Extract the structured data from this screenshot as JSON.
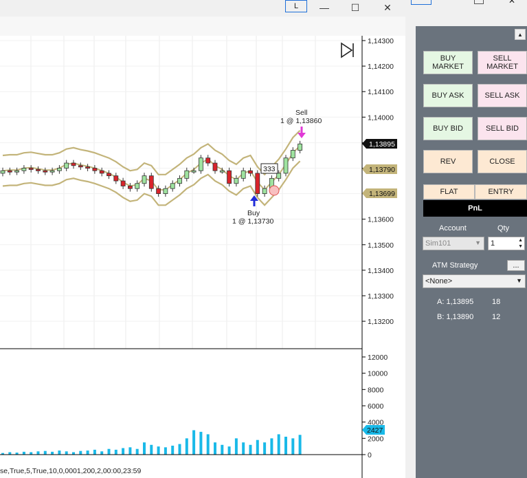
{
  "window": {
    "layout_button": "L",
    "minimize_icon": "minimize-icon",
    "maximize_icon": "maximize-icon",
    "close_icon": "close-icon"
  },
  "chart": {
    "price_axis": [
      "1,14300",
      "1,14200",
      "1,14100",
      "1,14000",
      "1,13900",
      "1,13800",
      "1,13700",
      "1,13600",
      "1,13500",
      "1,13400",
      "1,13300",
      "1,13200"
    ],
    "price_markers": {
      "last": "1,13895",
      "mid": "1,13790",
      "low": "1,13699"
    },
    "volume_axis": [
      "12000",
      "10000",
      "8000",
      "6000",
      "4000",
      "2000",
      "0"
    ],
    "volume_marker": "2427",
    "sell_annotation": {
      "title": "Sell",
      "detail": "1 @ 1,13860"
    },
    "buy_annotation": {
      "title": "Buy",
      "detail": "1 @ 1,13730"
    },
    "order_qty_label": "333",
    "indicator_params": "se,True,5,True,10,0,0001,200,2,00:00,23:59",
    "colors": {
      "band": "#c3b47a",
      "up": "#9fe3a0",
      "down": "#d9242b",
      "volume": "#19b9e8",
      "sell_arrow": "#e03ad6",
      "buy_arrow": "#1f2bd8"
    }
  },
  "chart_data": {
    "type": "bar",
    "price_series": {
      "open": [
        1.1378,
        1.1379,
        1.13785,
        1.1379,
        1.138,
        1.13795,
        1.1379,
        1.13785,
        1.1379,
        1.138,
        1.1382,
        1.1381,
        1.13805,
        1.138,
        1.1379,
        1.1378,
        1.1377,
        1.1375,
        1.1373,
        1.1372,
        1.1374,
        1.1377,
        1.1372,
        1.137,
        1.1372,
        1.1374,
        1.1376,
        1.1379,
        1.1379,
        1.1384,
        1.1382,
        1.1379,
        1.1379,
        1.1374,
        1.1376,
        1.1379,
        1.1378,
        1.137,
        1.1372,
        1.1376,
        1.1378,
        1.1384,
        1.1387
      ],
      "close": [
        1.1379,
        1.13785,
        1.1379,
        1.138,
        1.13795,
        1.1379,
        1.13785,
        1.1379,
        1.138,
        1.1382,
        1.1381,
        1.13805,
        1.138,
        1.1379,
        1.1378,
        1.1377,
        1.1375,
        1.1373,
        1.1372,
        1.1374,
        1.1377,
        1.1372,
        1.137,
        1.1372,
        1.1374,
        1.1376,
        1.1379,
        1.1379,
        1.1384,
        1.1382,
        1.1379,
        1.1379,
        1.1374,
        1.1376,
        1.1379,
        1.1378,
        1.137,
        1.1372,
        1.1376,
        1.1378,
        1.1384,
        1.1387,
        1.13895
      ]
    },
    "volume": [
      200,
      300,
      250,
      350,
      300,
      400,
      450,
      350,
      500,
      400,
      300,
      450,
      500,
      600,
      400,
      700,
      600,
      800,
      900,
      700,
      1500,
      1200,
      1000,
      900,
      1100,
      1300,
      2000,
      3000,
      2800,
      2500,
      1500,
      1200,
      1000,
      2000,
      1500,
      1200,
      1800,
      1500,
      2000,
      2500,
      2200,
      2000,
      2427
    ],
    "ylim": [
      1.1315,
      1.1432
    ]
  },
  "panel": {
    "buttons": [
      {
        "id": "buy-market",
        "label1": "BUY",
        "label2": "MARKET"
      },
      {
        "id": "sell-market",
        "label1": "SELL",
        "label2": "MARKET"
      },
      {
        "id": "buy-ask",
        "label1": "BUY ASK"
      },
      {
        "id": "sell-ask",
        "label1": "SELL ASK"
      },
      {
        "id": "buy-bid",
        "label1": "BUY BID"
      },
      {
        "id": "sell-bid",
        "label1": "SELL BID"
      },
      {
        "id": "rev",
        "label1": "REV"
      },
      {
        "id": "close",
        "label1": "CLOSE"
      }
    ],
    "tab_flat": "FLAT",
    "tab_entry": "ENTRY",
    "pnl_label": "PnL",
    "account_label": "Account",
    "qty_label": "Qty",
    "account_value": "Sim101",
    "qty_value": "1",
    "atm_label": "ATM Strategy",
    "atm_button": "...",
    "atm_value": "<None>",
    "ask_label": "A: 1,13895",
    "ask_size": "18",
    "bid_label": "B: 1,13890",
    "bid_size": "12"
  }
}
